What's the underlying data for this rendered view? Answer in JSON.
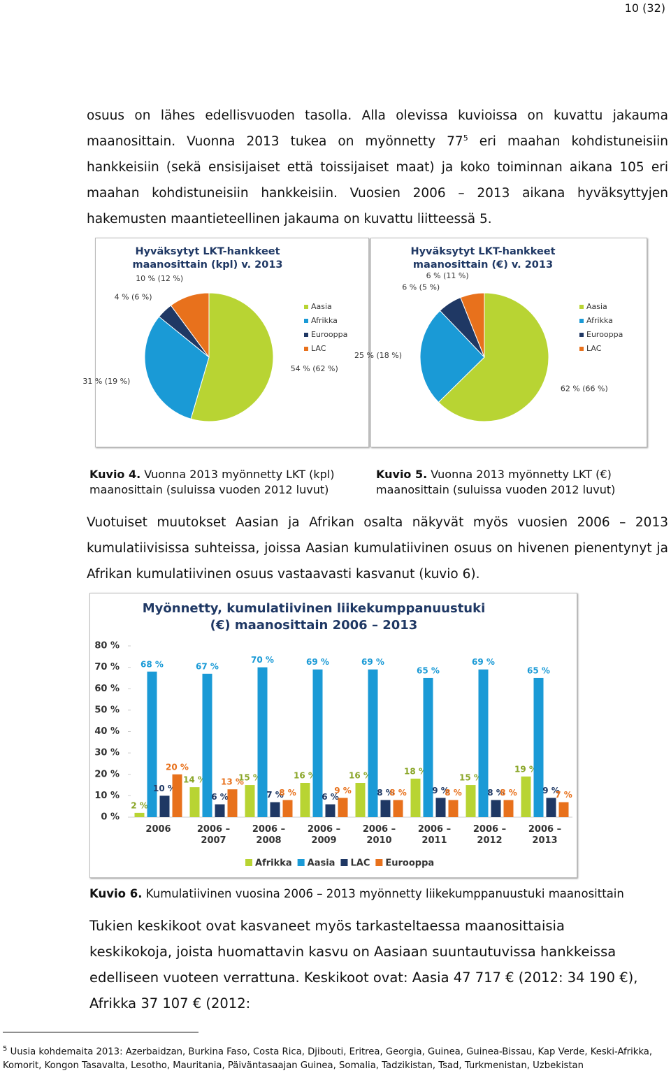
{
  "page_number": "10 (32)",
  "paragraph_1": {
    "before": "osuus on lähes edellisvuoden tasolla. Alla olevissa kuvioissa on kuvattu jakauma maanosittain. Vuonna 2013 tukea on myönnetty 77",
    "sup": "5",
    "after": " eri maahan kohdistuneisiin hankkeisiin (sekä ensisijaiset että toissijaiset maat) ja koko toiminnan aikana 105 eri maahan kohdistuneisiin hankkeisiin. Vuosien 2006 – 2013 aikana hyväksyttyjen hakemusten maantieteellinen jakauma on kuvattu liitteessä 5."
  },
  "captions": [
    {
      "label": "Kuvio 4.",
      "text": "Vuonna 2013 myönnetty LKT (kpl) maanosittain (suluissa vuoden 2012 luvut)"
    },
    {
      "label": "Kuvio 5.",
      "text": "Vuonna 2013 myönnetty LKT (€) maanosittain (suluissa vuoden 2012 luvut)"
    },
    {
      "label": "Kuvio 6.",
      "text": "Kumulatiivinen vuosina 2006 – 2013 myönnetty liikekumppanuustuki maanosittain"
    }
  ],
  "paragraph_2": "Vuotuiset muutokset Aasian ja Afrikan osalta näkyvät myös vuosien 2006 – 2013 kumulatiivisissa suhteissa, joissa Aasian kumulatiivinen osuus on hivenen pienentynyt ja Afrikan kumulatiivinen osuus vastaavasti kasvanut (kuvio 6).",
  "paragraph_3": "Tukien keskikoot ovat kasvaneet myös tarkasteltaessa maanosittaisia keskikokoja, joista huomattavin kasvu on Aasiaan suuntautuvissa hankkeissa edelliseen vuoteen verrattuna. Keskikoot ovat: Aasia 47 717 € (2012: 34 190 €), Afrikka 37 107 € (2012:",
  "footnote": {
    "mark": "5",
    "text": "Uusia kohdemaita 2013: Azerbaidzan, Burkina Faso, Costa Rica, Djibouti, Eritrea, Georgia, Guinea, Guinea-Bissau, Kap Verde, Keski-Afrikka, Komorit, Kongon Tasavalta, Lesotho, Mauritania, Päiväntasaajan Guinea, Somalia, Tadzikistan, Tsad, Turkmenistan, Uzbekistan"
  },
  "chart_data": [
    {
      "type": "pie",
      "title": "Hyväksytyt LKT-hankkeet maanosittain (kpl) v. 2013",
      "categories": [
        "Aasia",
        "Afrikka",
        "Eurooppa",
        "LAC"
      ],
      "values": [
        54,
        31,
        4,
        10
      ],
      "value_labels": [
        "54 % (62 %)",
        "31 % (19 %)",
        "4 % (6 %)",
        "10 % (12 %)"
      ],
      "colors": [
        "#b8d433",
        "#1a9ad6",
        "#1f3864",
        "#e8711c"
      ]
    },
    {
      "type": "pie",
      "title": "Hyväksytyt LKT-hankkeet maanosittain (€) v. 2013",
      "categories": [
        "Aasia",
        "Afrikka",
        "Eurooppa",
        "LAC"
      ],
      "values": [
        62,
        25,
        6,
        6
      ],
      "value_labels": [
        "62 % (66 %)",
        "25 % (18 %)",
        "6 % (5 %)",
        "6 % (11 %)"
      ],
      "colors": [
        "#b8d433",
        "#1a9ad6",
        "#1f3864",
        "#e8711c"
      ]
    },
    {
      "type": "bar",
      "title": "Myönnetty, kumulatiivinen liikekumppanuustuki (€) maanosittain 2006 – 2013",
      "categories": [
        "2006",
        "2006 – 2007",
        "2006 – 2008",
        "2006 – 2009",
        "2006 – 2010",
        "2006 – 2011",
        "2006 – 2012",
        "2006 – 2013"
      ],
      "series": [
        {
          "name": "Afrikka",
          "color": "#b8d433",
          "values": [
            2,
            14,
            15,
            16,
            16,
            18,
            15,
            19
          ],
          "value_labels": [
            "2 %",
            "14 %",
            "15 %",
            "16 %",
            "16 %",
            "18 %",
            "15 %",
            "19 %"
          ]
        },
        {
          "name": "Aasia",
          "color": "#1a9ad6",
          "values": [
            68,
            67,
            70,
            69,
            69,
            65,
            69,
            65
          ],
          "value_labels": [
            "68 %",
            "67 %",
            "70 %",
            "69 %",
            "69 %",
            "65 %",
            "69 %",
            "65 %"
          ]
        },
        {
          "name": "LAC",
          "color": "#1f3864",
          "values": [
            10,
            6,
            7,
            6,
            8,
            9,
            8,
            9
          ],
          "value_labels": [
            "10 %",
            "6 %",
            "7 %",
            "6 %",
            "8 %",
            "9 %",
            "8 %",
            "9 %"
          ]
        },
        {
          "name": "Eurooppa",
          "color": "#e8711c",
          "values": [
            20,
            13,
            8,
            9,
            8,
            8,
            8,
            7
          ],
          "value_labels": [
            "20 %",
            "13 %",
            "8 %",
            "9 %",
            "8 %",
            "8 %",
            "8 %",
            "7 %"
          ]
        }
      ],
      "ylim": [
        0,
        80
      ],
      "yticks": [
        {
          "value": 0,
          "label": "0 %"
        },
        {
          "value": 10,
          "label": "10 %"
        },
        {
          "value": 20,
          "label": "20 %"
        },
        {
          "value": 30,
          "label": "30 %"
        },
        {
          "value": 40,
          "label": "40 %"
        },
        {
          "value": 50,
          "label": "50 %"
        },
        {
          "value": 60,
          "label": "60 %"
        },
        {
          "value": 70,
          "label": "70 %"
        },
        {
          "value": 80,
          "label": "80 %"
        }
      ],
      "grid": false
    }
  ]
}
